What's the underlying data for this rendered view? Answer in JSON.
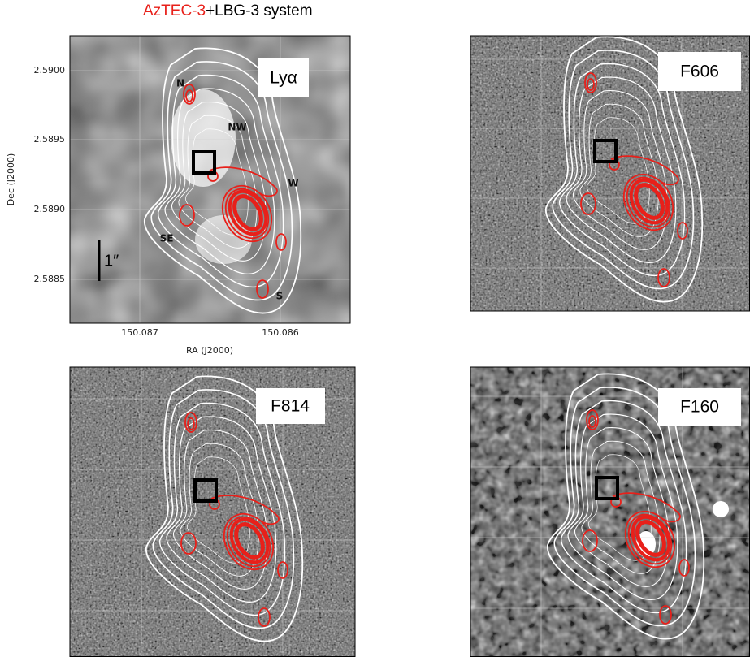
{
  "title": {
    "highlight": "AzTEC-3",
    "rest": "+LBG-3 system"
  },
  "axes": {
    "y_label": "Dec (J2000)",
    "x_label": "RA (J2000)",
    "y_ticks": [
      "2.5900",
      "2.5895",
      "2.5890",
      "2.5885"
    ],
    "x_ticks": [
      "150.087",
      "150.086"
    ]
  },
  "panels": [
    {
      "label": "Lyα"
    },
    {
      "label": "F606"
    },
    {
      "label": "F814"
    },
    {
      "label": "F160"
    }
  ],
  "annotations": {
    "regions": [
      "N",
      "NW",
      "W",
      "SE",
      "S"
    ],
    "scale_bar": "1″"
  }
}
